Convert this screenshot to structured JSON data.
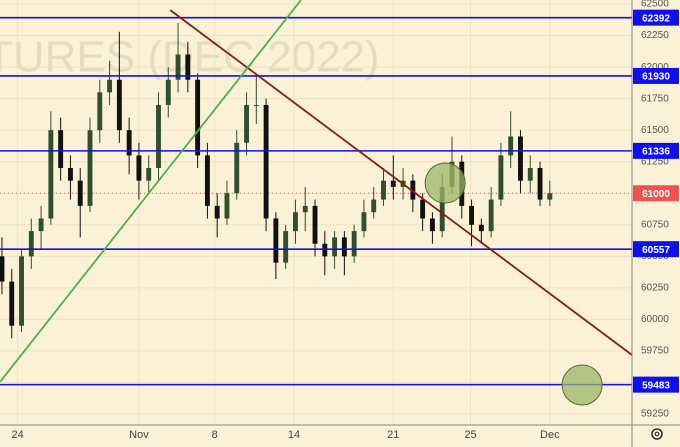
{
  "chart_data": {
    "type": "candlestick",
    "watermark": "TURES (DEC 2022)",
    "background": "#fbf1d6",
    "up_color": "#2f4f2f",
    "down_color": "#111111",
    "candles": {
      "open": [
        60500,
        60300,
        59950,
        60500,
        60700,
        60800,
        61500,
        61200,
        61100,
        60900,
        61500,
        61800,
        61900,
        61500,
        61300,
        61100,
        61200,
        61700,
        61900,
        62100,
        61900,
        61300,
        60900,
        60800,
        61000,
        61400,
        61700,
        61700,
        60800,
        60450,
        60700,
        60850,
        60900,
        60600,
        60500,
        60650,
        60500,
        60700,
        60850,
        60950,
        61100,
        61050,
        61100,
        60950,
        60800,
        60700,
        61050,
        61250,
        60900,
        60750,
        60700,
        60950,
        61300,
        61450,
        61100,
        61200,
        60950
      ],
      "high": [
        60650,
        60400,
        60550,
        60800,
        60900,
        61650,
        61600,
        61300,
        61200,
        61600,
        61900,
        62050,
        62280,
        61600,
        61400,
        61300,
        61800,
        62000,
        62350,
        62200,
        61950,
        61400,
        61000,
        61100,
        61500,
        61800,
        61950,
        61750,
        60850,
        60750,
        60950,
        61050,
        60950,
        60700,
        60700,
        60700,
        60750,
        60950,
        61050,
        61200,
        61300,
        61200,
        61150,
        61000,
        60850,
        61150,
        61450,
        61300,
        60950,
        60800,
        61050,
        61400,
        61650,
        61500,
        61300,
        61250,
        61100
      ],
      "low": [
        60200,
        59850,
        59900,
        60400,
        60550,
        60750,
        61100,
        60950,
        60650,
        60850,
        61400,
        61700,
        61400,
        61150,
        60950,
        61000,
        61100,
        61600,
        61800,
        61800,
        61200,
        60800,
        60650,
        60750,
        60950,
        61300,
        61550,
        60700,
        60320,
        60400,
        60600,
        60700,
        60500,
        60350,
        60400,
        60350,
        60450,
        60650,
        60800,
        60900,
        60950,
        60950,
        60850,
        60700,
        60600,
        60650,
        61000,
        60800,
        60580,
        60600,
        60650,
        60900,
        61200,
        61000,
        61000,
        60900,
        60900
      ],
      "close": [
        60300,
        59950,
        60500,
        60700,
        60800,
        61500,
        61200,
        61100,
        60900,
        61500,
        61800,
        61900,
        61500,
        61300,
        61100,
        61200,
        61700,
        61900,
        62100,
        61900,
        61300,
        60900,
        60800,
        61000,
        61400,
        61700,
        61700,
        60800,
        60450,
        60700,
        60850,
        60900,
        60600,
        60500,
        60650,
        60500,
        60700,
        60850,
        60950,
        61100,
        61050,
        61100,
        60950,
        60800,
        60700,
        61050,
        61250,
        60900,
        60750,
        60700,
        60950,
        61300,
        61450,
        61100,
        61200,
        60950,
        61000
      ]
    },
    "xlim": [
      -0.2,
      64.4
    ],
    "xticks": [
      {
        "value": 1.6,
        "label": "24"
      },
      {
        "value": 14,
        "label": "Nov"
      },
      {
        "value": 21.75,
        "label": "8"
      },
      {
        "value": 29.85,
        "label": "14"
      },
      {
        "value": 40,
        "label": "21"
      },
      {
        "value": 47.9,
        "label": "25"
      },
      {
        "value": 56,
        "label": "Dec"
      }
    ],
    "ylim": [
      59163,
      62532
    ],
    "yticks": [
      62500,
      62250,
      62000,
      61750,
      61500,
      61250,
      61000,
      60750,
      60500,
      60250,
      60000,
      59750,
      59500,
      59250
    ],
    "grid": true,
    "levels": [
      62392,
      61930,
      61336,
      60557,
      59483
    ],
    "level_color": "#1010ee",
    "current_price": 61000,
    "current_color": "#ef5350",
    "trendlines": [
      {
        "color": "#8b1a1a",
        "start": {
          "x": 17.2,
          "price": 62452
        },
        "end": {
          "x": 64.4,
          "price": 59718
        }
      },
      {
        "color": "#4caf50",
        "start": {
          "x": -0.2,
          "price": 59504
        },
        "end": {
          "x": 30.57,
          "price": 62532
        }
      }
    ],
    "markers": [
      {
        "color": "#9cb46a",
        "x": 45.3,
        "price": 61081
      },
      {
        "color": "#9cb46a",
        "x": 59.3,
        "price": 59480
      }
    ]
  }
}
